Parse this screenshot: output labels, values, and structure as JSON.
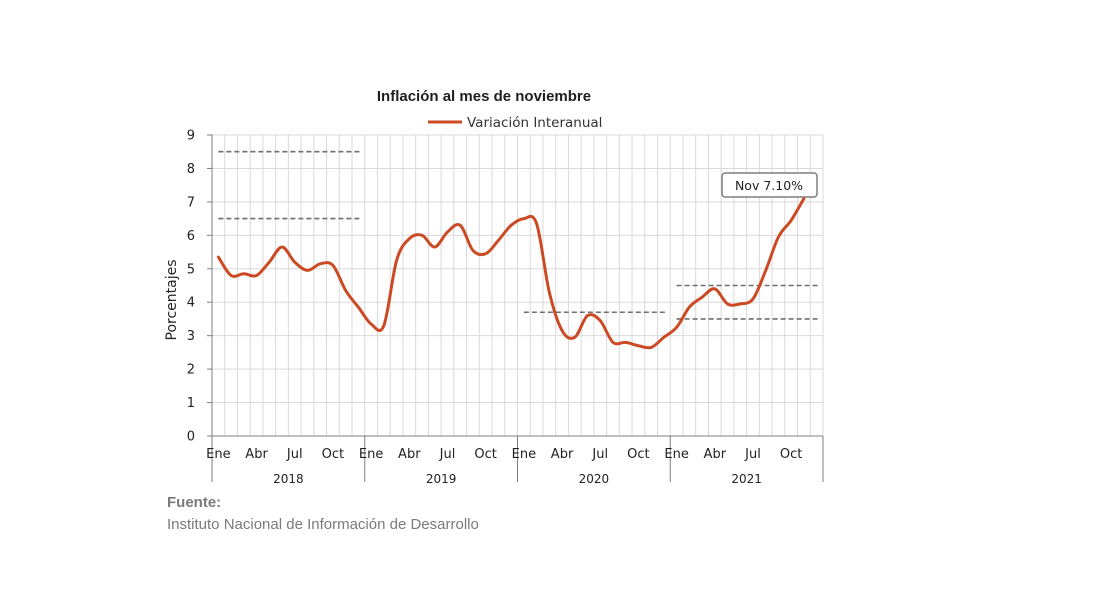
{
  "chart_data": {
    "type": "line",
    "title": "Inflación al mes de noviembre",
    "ylabel": "Porcentajes",
    "xlabel": "",
    "ylim": [
      0,
      9
    ],
    "yticks": [
      "0",
      "1",
      "2",
      "3",
      "4",
      "5",
      "6",
      "7",
      "8",
      "9"
    ],
    "grid": true,
    "legend_position": "top-center",
    "series": [
      {
        "name": "Variación Interanual",
        "color": "#cc4a23",
        "values": [
          5.35,
          4.8,
          4.85,
          4.8,
          5.2,
          5.65,
          5.2,
          4.95,
          5.15,
          5.1,
          4.35,
          3.85,
          3.35,
          3.3,
          5.25,
          5.9,
          6.0,
          5.65,
          6.1,
          6.3,
          5.55,
          5.45,
          5.85,
          6.3,
          6.5,
          6.35,
          4.3,
          3.15,
          2.95,
          3.6,
          3.45,
          2.8,
          2.8,
          2.7,
          2.65,
          2.95,
          3.25,
          3.85,
          4.15,
          4.4,
          3.95,
          3.95,
          4.1,
          4.95,
          5.95,
          6.45,
          7.1
        ]
      }
    ],
    "x_tick_labels": [
      "Ene",
      "Abr",
      "Jul",
      "Oct",
      "Ene",
      "Abr",
      "Jul",
      "Oct",
      "Ene",
      "Abr",
      "Jul",
      "Oct",
      "Ene",
      "Abr",
      "Jul",
      "Oct"
    ],
    "years": [
      "2018",
      "2019",
      "2020",
      "2021"
    ],
    "reference_lines": [
      {
        "value": 8.5,
        "year": "2018"
      },
      {
        "value": 6.5,
        "year": "2018"
      },
      {
        "value": 3.7,
        "year": "2020"
      },
      {
        "value": 4.5,
        "year": "2021"
      },
      {
        "value": 3.5,
        "year": "2021"
      }
    ],
    "annotation": {
      "text": "Nov 7.10%",
      "x": "Nov 2021",
      "y": 7.1
    }
  },
  "source": {
    "title": "Fuente:",
    "body": "Instituto Nacional de Información de  Desarrollo"
  }
}
